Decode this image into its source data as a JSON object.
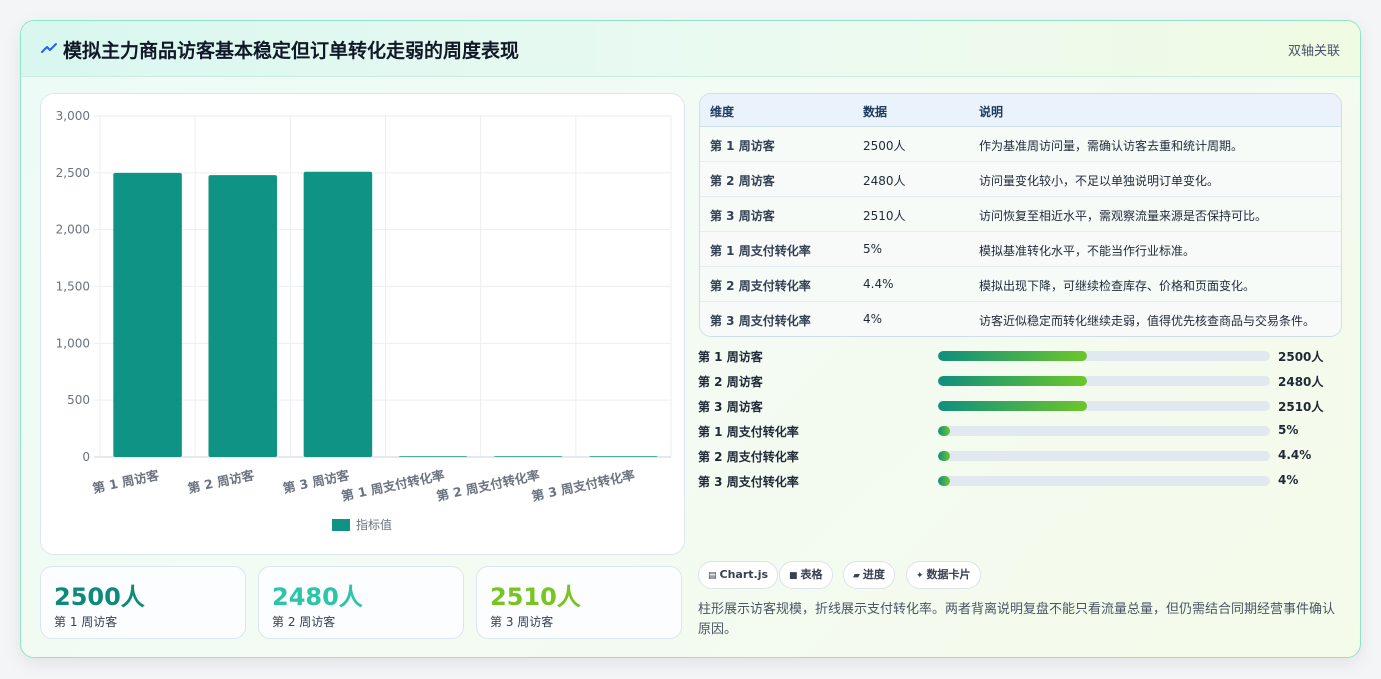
{
  "header": {
    "title": "模拟主力商品访客基本稳定但订单转化走弱的周度表现",
    "tag": "双轴关联",
    "icon": "trend-icon"
  },
  "chart_data": {
    "type": "bar",
    "categories": [
      "第 1 周访客",
      "第 2 周访客",
      "第 3 周访客",
      "第 1 周支付转化率",
      "第 2 周支付转化率",
      "第 3 周支付转化率"
    ],
    "series": [
      {
        "name": "指标值",
        "values": [
          2500,
          2480,
          2510,
          5,
          4.4,
          4
        ],
        "color": "#0e9384"
      }
    ],
    "ylim": [
      0,
      3000
    ],
    "yticks": [
      "0",
      "500",
      "1,000",
      "1,500",
      "2,000",
      "2,500",
      "3,000"
    ],
    "ytick_values": [
      0,
      500,
      1000,
      1500,
      2000,
      2500,
      3000
    ],
    "grid": true,
    "legend": "bottom"
  },
  "stats": [
    {
      "value": "2500人",
      "label": "第 1 周访客",
      "color": "#0e8a7a"
    },
    {
      "value": "2480人",
      "label": "第 2 周访客",
      "color": "#2dc5a8"
    },
    {
      "value": "2510人",
      "label": "第 3 周访客",
      "color": "#79c421"
    }
  ],
  "table": {
    "headers": [
      "维度",
      "数据",
      "说明"
    ],
    "rows": [
      [
        "第 1 周访客",
        "2500人",
        "作为基准周访问量，需确认访客去重和统计周期。"
      ],
      [
        "第 2 周访客",
        "2480人",
        "访问量变化较小，不足以单独说明订单变化。"
      ],
      [
        "第 3 周访客",
        "2510人",
        "访问恢复至相近水平，需观察流量来源是否保持可比。"
      ],
      [
        "第 1 周支付转化率",
        "5%",
        "模拟基准转化水平，不能当作行业标准。"
      ],
      [
        "第 2 周支付转化率",
        "4.4%",
        "模拟出现下降，可继续检查库存、价格和页面变化。"
      ],
      [
        "第 3 周支付转化率",
        "4%",
        "访客近似稳定而转化继续走弱，值得优先核查商品与交易条件。"
      ]
    ]
  },
  "progress": [
    {
      "label": "第 1 周访客",
      "value": "2500人",
      "fraction": 0.45
    },
    {
      "label": "第 2 周访客",
      "value": "2480人",
      "fraction": 0.45
    },
    {
      "label": "第 3 周访客",
      "value": "2510人",
      "fraction": 0.45
    },
    {
      "label": "第 1 周支付转化率",
      "value": "5%",
      "fraction": 0.035
    },
    {
      "label": "第 2 周支付转化率",
      "value": "4.4%",
      "fraction": 0.035
    },
    {
      "label": "第 3 周支付转化率",
      "value": "4%",
      "fraction": 0.035
    }
  ],
  "chips": [
    {
      "label": "Chart.js",
      "icon": "chart-icon"
    },
    {
      "label": "表格",
      "icon": "table-icon"
    },
    {
      "label": "进度",
      "icon": "progress-icon"
    },
    {
      "label": "数据卡片",
      "icon": "sparkle-icon"
    }
  ],
  "note": "柱形展示访客规模，折线展示支付转化率。两者背离说明复盘不能只看流量总量，但仍需结合同期经营事件确认原因。"
}
